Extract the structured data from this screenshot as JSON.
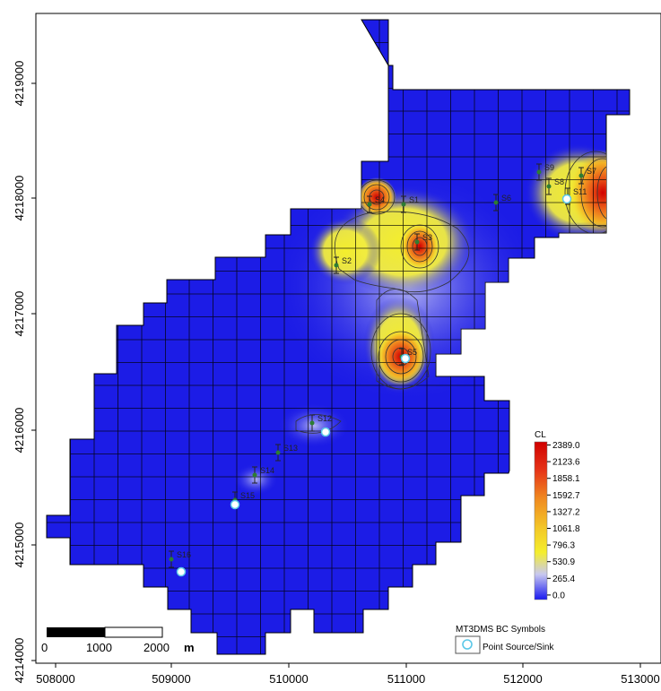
{
  "map": {
    "x_axis": {
      "ticks": [
        "508000",
        "509000",
        "510000",
        "511000",
        "512000",
        "513000"
      ]
    },
    "y_axis": {
      "ticks": [
        "4219000",
        "4218000",
        "4217000",
        "4216000",
        "4215000",
        "4214000"
      ]
    },
    "stations": [
      {
        "label": "S1"
      },
      {
        "label": "S2"
      },
      {
        "label": "S3"
      },
      {
        "label": "S4"
      },
      {
        "label": "S5"
      },
      {
        "label": "S6"
      },
      {
        "label": "S7"
      },
      {
        "label": "S8"
      },
      {
        "label": "S9"
      },
      {
        "label": "S11"
      },
      {
        "label": "S12"
      },
      {
        "label": "S13"
      },
      {
        "label": "S14"
      },
      {
        "label": "S15"
      },
      {
        "label": "S16"
      }
    ],
    "legend": {
      "title": "CL",
      "values": [
        "2389.0",
        "2123.6",
        "1858.1",
        "1592.7",
        "1327.2",
        "1061.8",
        "796.3",
        "530.9",
        "265.4",
        "0.0"
      ],
      "colors": [
        "#d00000",
        "#e02a10",
        "#ea5a18",
        "#f08a20",
        "#f3b425",
        "#f5d52a",
        "#f4ee2c",
        "#d6e050",
        "#8c8ce8",
        "#2020f0"
      ]
    },
    "scale_bar": {
      "labels": [
        "0",
        "1000",
        "2000"
      ],
      "unit": "m"
    },
    "bc_symbols": {
      "title": "MT3DMS BC Symbols",
      "item": "Point Source/Sink"
    },
    "colors": {
      "domain_blue": "#1c1ce6",
      "grid_line": "#000000",
      "high": "#e00000",
      "mid": "#f4ee2c",
      "source_marker": "#5bc8e8"
    }
  }
}
